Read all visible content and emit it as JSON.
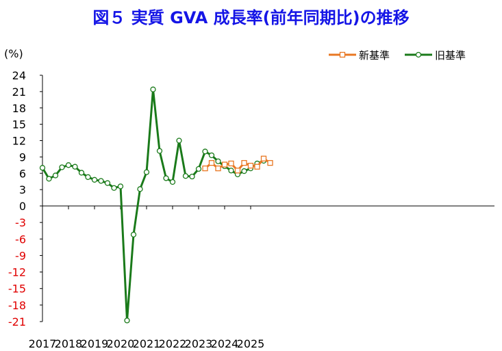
{
  "chart_data": {
    "type": "line",
    "title": "図５ 実質 GVA 成長率(前年同期比)の推移",
    "title_color": "#1515e6",
    "ylabel": "(%)",
    "xlabel": "",
    "ylim": [
      -21,
      24
    ],
    "y_ticks": [
      24,
      21,
      18,
      15,
      12,
      9,
      6,
      3,
      0,
      -3,
      -6,
      -9,
      -12,
      -15,
      -18,
      -21
    ],
    "positive_tick_color": "#000000",
    "negative_tick_color": "#e00000",
    "x_tick_labels": [
      "2017",
      "2018",
      "2019",
      "2020",
      "2021",
      "2022",
      "2023",
      "2024",
      "2025"
    ],
    "quarters_per_year": 4,
    "legend_position": "top-right",
    "grid": false,
    "series": [
      {
        "name": "新基準",
        "color": "#e87722",
        "marker": "square",
        "start_index": 25,
        "values": [
          6.9,
          7.9,
          6.9,
          7.6,
          7.8,
          6.5,
          7.9,
          7.4,
          7.2,
          8.7,
          7.9
        ]
      },
      {
        "name": "旧基準",
        "color": "#1a7a1a",
        "marker": "circle",
        "start_index": 0,
        "values": [
          7.0,
          5.0,
          5.6,
          7.1,
          7.5,
          7.2,
          6.1,
          5.3,
          4.8,
          4.6,
          4.2,
          3.3,
          3.6,
          -20.8,
          -5.2,
          3.1,
          6.2,
          21.4,
          10.1,
          5.1,
          4.4,
          12.0,
          5.5,
          5.4,
          6.8,
          10.0,
          9.3,
          8.2,
          7.3,
          6.5,
          5.8,
          6.4,
          6.9,
          7.8,
          8.3
        ]
      }
    ]
  }
}
